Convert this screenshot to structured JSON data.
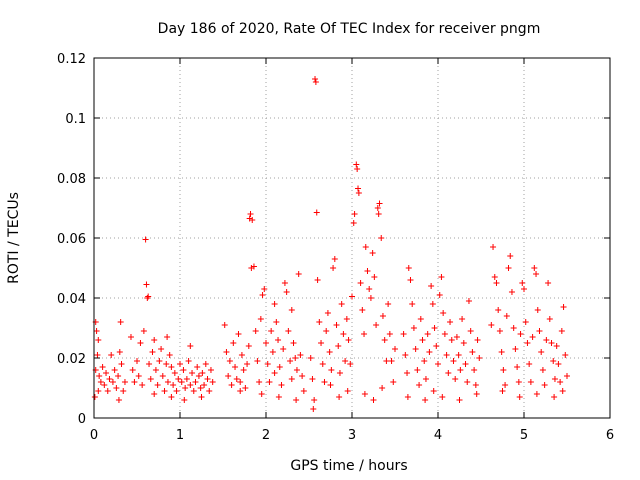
{
  "chart_data": {
    "type": "scatter",
    "title": "Day 186 of 2020, Rate Of TEC Index for receiver pngm",
    "xlabel": "GPS time / hours",
    "ylabel": "ROTI / TECUs",
    "xlim": [
      0,
      6
    ],
    "ylim": [
      0,
      0.12
    ],
    "xticks": [
      0,
      1,
      2,
      3,
      4,
      5,
      6
    ],
    "xtick_labels": [
      "0",
      "1",
      "2",
      "3",
      "4",
      "5",
      "6"
    ],
    "yticks": [
      0,
      0.02,
      0.04,
      0.06,
      0.08,
      0.1,
      0.12
    ],
    "ytick_labels": [
      "0",
      "0.02",
      "0.04",
      "0.06",
      "0.08",
      "0.1",
      "0.12"
    ],
    "grid": true,
    "marker": "+",
    "color": "#ff0000",
    "series": [
      {
        "name": "ROTI",
        "points": [
          [
            0.02,
            0.032
          ],
          [
            0.03,
            0.029
          ],
          [
            0.05,
            0.026
          ],
          [
            0.04,
            0.021
          ],
          [
            0.02,
            0.016
          ],
          [
            0.06,
            0.014
          ],
          [
            0.08,
            0.012
          ],
          [
            0.05,
            0.009
          ],
          [
            0.01,
            0.007
          ],
          [
            0.1,
            0.017
          ],
          [
            0.12,
            0.011
          ],
          [
            0.14,
            0.015
          ],
          [
            0.16,
            0.009
          ],
          [
            0.18,
            0.013
          ],
          [
            0.2,
            0.021
          ],
          [
            0.22,
            0.012
          ],
          [
            0.24,
            0.016
          ],
          [
            0.26,
            0.01
          ],
          [
            0.28,
            0.014
          ],
          [
            0.3,
            0.022
          ],
          [
            0.32,
            0.018
          ],
          [
            0.34,
            0.009
          ],
          [
            0.31,
            0.032
          ],
          [
            0.36,
            0.012
          ],
          [
            0.29,
            0.006
          ],
          [
            0.43,
            0.027
          ],
          [
            0.45,
            0.016
          ],
          [
            0.47,
            0.012
          ],
          [
            0.5,
            0.019
          ],
          [
            0.52,
            0.014
          ],
          [
            0.54,
            0.025
          ],
          [
            0.56,
            0.011
          ],
          [
            0.58,
            0.029
          ],
          [
            0.6,
            0.0595
          ],
          [
            0.61,
            0.0445
          ],
          [
            0.62,
            0.04
          ],
          [
            0.63,
            0.0405
          ],
          [
            0.64,
            0.018
          ],
          [
            0.66,
            0.013
          ],
          [
            0.68,
            0.022
          ],
          [
            0.7,
            0.026
          ],
          [
            0.72,
            0.016
          ],
          [
            0.74,
            0.011
          ],
          [
            0.76,
            0.019
          ],
          [
            0.78,
            0.023
          ],
          [
            0.8,
            0.014
          ],
          [
            0.82,
            0.009
          ],
          [
            0.84,
            0.018
          ],
          [
            0.86,
            0.012
          ],
          [
            0.88,
            0.021
          ],
          [
            0.9,
            0.017
          ],
          [
            0.92,
            0.011
          ],
          [
            0.94,
            0.015
          ],
          [
            0.96,
            0.009
          ],
          [
            0.98,
            0.013
          ],
          [
            1.0,
            0.018
          ],
          [
            1.02,
            0.012
          ],
          [
            1.04,
            0.016
          ],
          [
            1.06,
            0.01
          ],
          [
            1.08,
            0.013
          ],
          [
            1.1,
            0.019
          ],
          [
            1.12,
            0.011
          ],
          [
            1.14,
            0.015
          ],
          [
            1.16,
            0.009
          ],
          [
            1.18,
            0.012
          ],
          [
            1.2,
            0.017
          ],
          [
            1.22,
            0.014
          ],
          [
            1.24,
            0.01
          ],
          [
            1.26,
            0.015
          ],
          [
            1.28,
            0.011
          ],
          [
            1.3,
            0.018
          ],
          [
            1.32,
            0.013
          ],
          [
            1.34,
            0.009
          ],
          [
            1.36,
            0.016
          ],
          [
            1.38,
            0.012
          ],
          [
            0.7,
            0.008
          ],
          [
            0.9,
            0.007
          ],
          [
            1.05,
            0.006
          ],
          [
            1.25,
            0.007
          ],
          [
            0.85,
            0.027
          ],
          [
            1.12,
            0.024
          ],
          [
            1.52,
            0.031
          ],
          [
            1.54,
            0.022
          ],
          [
            1.56,
            0.014
          ],
          [
            1.58,
            0.019
          ],
          [
            1.6,
            0.011
          ],
          [
            1.62,
            0.025
          ],
          [
            1.64,
            0.017
          ],
          [
            1.66,
            0.013
          ],
          [
            1.68,
            0.028
          ],
          [
            1.7,
            0.012
          ],
          [
            1.72,
            0.021
          ],
          [
            1.74,
            0.016
          ],
          [
            1.76,
            0.01
          ],
          [
            1.78,
            0.018
          ],
          [
            1.8,
            0.024
          ],
          [
            1.81,
            0.0665
          ],
          [
            1.82,
            0.068
          ],
          [
            1.84,
            0.066
          ],
          [
            1.83,
            0.05
          ],
          [
            1.86,
            0.0505
          ],
          [
            1.88,
            0.029
          ],
          [
            1.9,
            0.019
          ],
          [
            1.92,
            0.012
          ],
          [
            1.94,
            0.033
          ],
          [
            1.96,
            0.041
          ],
          [
            1.98,
            0.043
          ],
          [
            2.0,
            0.025
          ],
          [
            2.02,
            0.018
          ],
          [
            2.04,
            0.012
          ],
          [
            2.06,
            0.029
          ],
          [
            2.08,
            0.022
          ],
          [
            2.1,
            0.015
          ],
          [
            2.12,
            0.032
          ],
          [
            2.14,
            0.026
          ],
          [
            2.16,
            0.017
          ],
          [
            2.18,
            0.011
          ],
          [
            2.2,
            0.023
          ],
          [
            2.22,
            0.045
          ],
          [
            2.24,
            0.042
          ],
          [
            2.26,
            0.029
          ],
          [
            2.28,
            0.019
          ],
          [
            2.3,
            0.013
          ],
          [
            2.32,
            0.025
          ],
          [
            2.34,
            0.02
          ],
          [
            2.36,
            0.016
          ],
          [
            2.38,
            0.048
          ],
          [
            2.4,
            0.021
          ],
          [
            2.42,
            0.014
          ],
          [
            2.44,
            0.009
          ],
          [
            2.3,
            0.036
          ],
          [
            2.1,
            0.038
          ],
          [
            1.7,
            0.009
          ],
          [
            1.95,
            0.008
          ],
          [
            2.15,
            0.007
          ],
          [
            2.35,
            0.006
          ],
          [
            2.52,
            0.02
          ],
          [
            2.54,
            0.013
          ],
          [
            2.56,
            0.006
          ],
          [
            2.55,
            0.003
          ],
          [
            2.57,
            0.113
          ],
          [
            2.58,
            0.112
          ],
          [
            2.59,
            0.0685
          ],
          [
            2.6,
            0.046
          ],
          [
            2.62,
            0.032
          ],
          [
            2.64,
            0.025
          ],
          [
            2.66,
            0.018
          ],
          [
            2.68,
            0.012
          ],
          [
            2.7,
            0.029
          ],
          [
            2.72,
            0.035
          ],
          [
            2.74,
            0.022
          ],
          [
            2.76,
            0.016
          ],
          [
            2.78,
            0.05
          ],
          [
            2.8,
            0.053
          ],
          [
            2.82,
            0.031
          ],
          [
            2.84,
            0.024
          ],
          [
            2.86,
            0.015
          ],
          [
            2.88,
            0.038
          ],
          [
            2.9,
            0.028
          ],
          [
            2.92,
            0.019
          ],
          [
            2.94,
            0.033
          ],
          [
            2.96,
            0.026
          ],
          [
            2.98,
            0.018
          ],
          [
            3.0,
            0.0405
          ],
          [
            3.02,
            0.065
          ],
          [
            3.03,
            0.068
          ],
          [
            3.05,
            0.0845
          ],
          [
            3.06,
            0.083
          ],
          [
            3.07,
            0.0765
          ],
          [
            3.08,
            0.075
          ],
          [
            3.1,
            0.045
          ],
          [
            3.12,
            0.036
          ],
          [
            3.14,
            0.028
          ],
          [
            3.16,
            0.057
          ],
          [
            3.18,
            0.049
          ],
          [
            3.2,
            0.043
          ],
          [
            3.22,
            0.04
          ],
          [
            3.24,
            0.055
          ],
          [
            3.26,
            0.047
          ],
          [
            3.28,
            0.031
          ],
          [
            3.3,
            0.07
          ],
          [
            3.31,
            0.068
          ],
          [
            3.32,
            0.0715
          ],
          [
            3.34,
            0.06
          ],
          [
            3.36,
            0.034
          ],
          [
            3.38,
            0.026
          ],
          [
            3.4,
            0.019
          ],
          [
            3.42,
            0.038
          ],
          [
            3.44,
            0.028
          ],
          [
            3.46,
            0.019
          ],
          [
            3.48,
            0.012
          ],
          [
            3.5,
            0.023
          ],
          [
            2.75,
            0.011
          ],
          [
            2.95,
            0.009
          ],
          [
            3.15,
            0.008
          ],
          [
            3.35,
            0.01
          ],
          [
            2.85,
            0.007
          ],
          [
            3.25,
            0.006
          ],
          [
            3.6,
            0.028
          ],
          [
            3.62,
            0.021
          ],
          [
            3.64,
            0.015
          ],
          [
            3.66,
            0.05
          ],
          [
            3.68,
            0.046
          ],
          [
            3.7,
            0.038
          ],
          [
            3.72,
            0.03
          ],
          [
            3.74,
            0.023
          ],
          [
            3.76,
            0.016
          ],
          [
            3.78,
            0.011
          ],
          [
            3.8,
            0.033
          ],
          [
            3.82,
            0.026
          ],
          [
            3.84,
            0.019
          ],
          [
            3.86,
            0.013
          ],
          [
            3.88,
            0.028
          ],
          [
            3.9,
            0.022
          ],
          [
            3.92,
            0.044
          ],
          [
            3.94,
            0.038
          ],
          [
            3.96,
            0.03
          ],
          [
            3.98,
            0.024
          ],
          [
            4.0,
            0.018
          ],
          [
            4.02,
            0.041
          ],
          [
            4.04,
            0.047
          ],
          [
            4.06,
            0.035
          ],
          [
            4.08,
            0.028
          ],
          [
            4.1,
            0.021
          ],
          [
            4.12,
            0.015
          ],
          [
            4.14,
            0.032
          ],
          [
            4.16,
            0.026
          ],
          [
            4.18,
            0.019
          ],
          [
            4.2,
            0.013
          ],
          [
            4.22,
            0.027
          ],
          [
            4.24,
            0.021
          ],
          [
            4.26,
            0.016
          ],
          [
            4.28,
            0.033
          ],
          [
            4.3,
            0.025
          ],
          [
            4.32,
            0.018
          ],
          [
            4.34,
            0.012
          ],
          [
            4.36,
            0.039
          ],
          [
            4.38,
            0.029
          ],
          [
            4.4,
            0.022
          ],
          [
            4.42,
            0.016
          ],
          [
            4.44,
            0.011
          ],
          [
            4.46,
            0.026
          ],
          [
            4.48,
            0.02
          ],
          [
            3.65,
            0.007
          ],
          [
            3.85,
            0.006
          ],
          [
            4.05,
            0.007
          ],
          [
            4.25,
            0.006
          ],
          [
            4.45,
            0.008
          ],
          [
            3.95,
            0.009
          ],
          [
            4.62,
            0.031
          ],
          [
            4.64,
            0.057
          ],
          [
            4.66,
            0.047
          ],
          [
            4.68,
            0.045
          ],
          [
            4.7,
            0.036
          ],
          [
            4.72,
            0.029
          ],
          [
            4.74,
            0.022
          ],
          [
            4.76,
            0.016
          ],
          [
            4.78,
            0.011
          ],
          [
            4.8,
            0.034
          ],
          [
            4.82,
            0.05
          ],
          [
            4.84,
            0.054
          ],
          [
            4.86,
            0.042
          ],
          [
            4.88,
            0.03
          ],
          [
            4.9,
            0.023
          ],
          [
            4.92,
            0.017
          ],
          [
            4.94,
            0.012
          ],
          [
            4.96,
            0.028
          ],
          [
            4.98,
            0.045
          ],
          [
            5.0,
            0.043
          ],
          [
            5.02,
            0.032
          ],
          [
            5.04,
            0.025
          ],
          [
            5.06,
            0.018
          ],
          [
            5.08,
            0.012
          ],
          [
            5.1,
            0.027
          ],
          [
            5.12,
            0.05
          ],
          [
            5.14,
            0.048
          ],
          [
            5.16,
            0.036
          ],
          [
            5.18,
            0.029
          ],
          [
            5.2,
            0.022
          ],
          [
            5.22,
            0.016
          ],
          [
            5.24,
            0.011
          ],
          [
            5.26,
            0.026
          ],
          [
            5.28,
            0.045
          ],
          [
            5.3,
            0.033
          ],
          [
            5.32,
            0.025
          ],
          [
            5.34,
            0.019
          ],
          [
            5.36,
            0.013
          ],
          [
            5.38,
            0.024
          ],
          [
            5.4,
            0.018
          ],
          [
            5.42,
            0.012
          ],
          [
            5.44,
            0.029
          ],
          [
            5.46,
            0.037
          ],
          [
            5.48,
            0.021
          ],
          [
            5.5,
            0.014
          ],
          [
            5.35,
            0.007
          ],
          [
            5.15,
            0.008
          ],
          [
            4.95,
            0.007
          ],
          [
            4.75,
            0.009
          ],
          [
            5.45,
            0.009
          ]
        ]
      }
    ]
  }
}
